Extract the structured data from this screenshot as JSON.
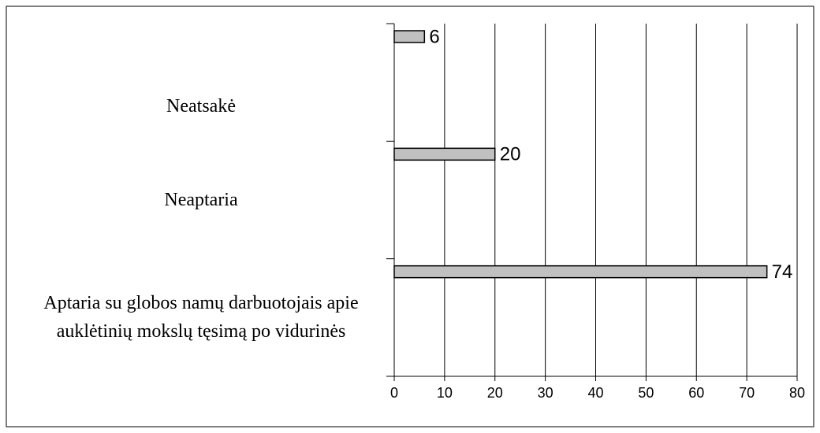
{
  "chart_data": {
    "type": "bar",
    "orientation": "horizontal",
    "categories": [
      "Neatsakė",
      "Neaptaria",
      "Aptaria su globos namų darbuotojais apie auklėtinių mokslų tęsimą po vidurinės"
    ],
    "values": [
      6,
      20,
      74
    ],
    "color": "#c0c0c0",
    "xlim": [
      0,
      80
    ],
    "xticks": [
      0,
      10,
      20,
      30,
      40,
      50,
      60,
      70,
      80
    ],
    "grid": true
  }
}
